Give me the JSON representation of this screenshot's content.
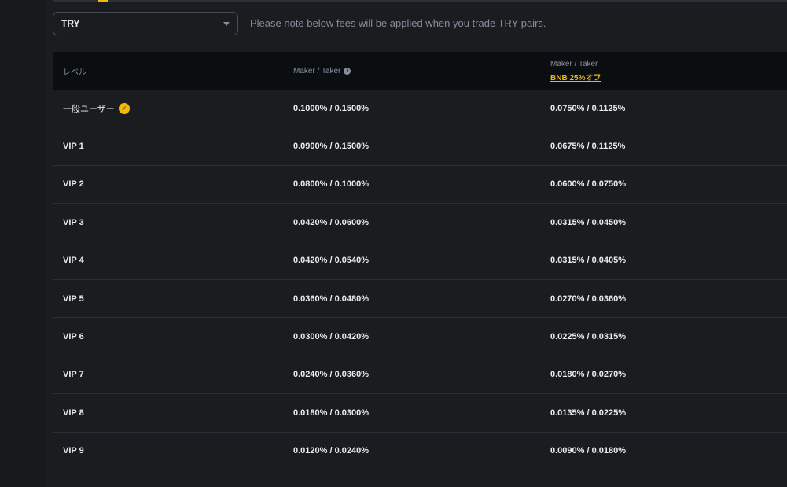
{
  "currency_select": {
    "value": "TRY"
  },
  "note": "Please note below fees will be applied when you trade TRY pairs.",
  "colors": {
    "accent": "#f0b90b",
    "background": "#1b1c20",
    "header": "#0b0e11"
  },
  "table": {
    "headers": {
      "level": "レベル",
      "maker_taker": "Maker / Taker",
      "maker_taker_bnb": "Maker / Taker",
      "bnb_discount": "BNB 25%オフ"
    },
    "rows": [
      {
        "level": "一般ユーザー",
        "fee": "0.1000% / 0.1500%",
        "bnb_fee": "0.0750% / 0.1125%"
      },
      {
        "level": "VIP 1",
        "fee": "0.0900% / 0.1500%",
        "bnb_fee": "0.0675% / 0.1125%"
      },
      {
        "level": "VIP 2",
        "fee": "0.0800% / 0.1000%",
        "bnb_fee": "0.0600% / 0.0750%"
      },
      {
        "level": "VIP 3",
        "fee": "0.0420% / 0.0600%",
        "bnb_fee": "0.0315% / 0.0450%"
      },
      {
        "level": "VIP 4",
        "fee": "0.0420% / 0.0540%",
        "bnb_fee": "0.0315% / 0.0405%"
      },
      {
        "level": "VIP 5",
        "fee": "0.0360% / 0.0480%",
        "bnb_fee": "0.0270% / 0.0360%"
      },
      {
        "level": "VIP 6",
        "fee": "0.0300% / 0.0420%",
        "bnb_fee": "0.0225% / 0.0315%"
      },
      {
        "level": "VIP 7",
        "fee": "0.0240% / 0.0360%",
        "bnb_fee": "0.0180% / 0.0270%"
      },
      {
        "level": "VIP 8",
        "fee": "0.0180% / 0.0300%",
        "bnb_fee": "0.0135% / 0.0225%"
      },
      {
        "level": "VIP 9",
        "fee": "0.0120% / 0.0240%",
        "bnb_fee": "0.0090% / 0.0180%"
      }
    ]
  }
}
